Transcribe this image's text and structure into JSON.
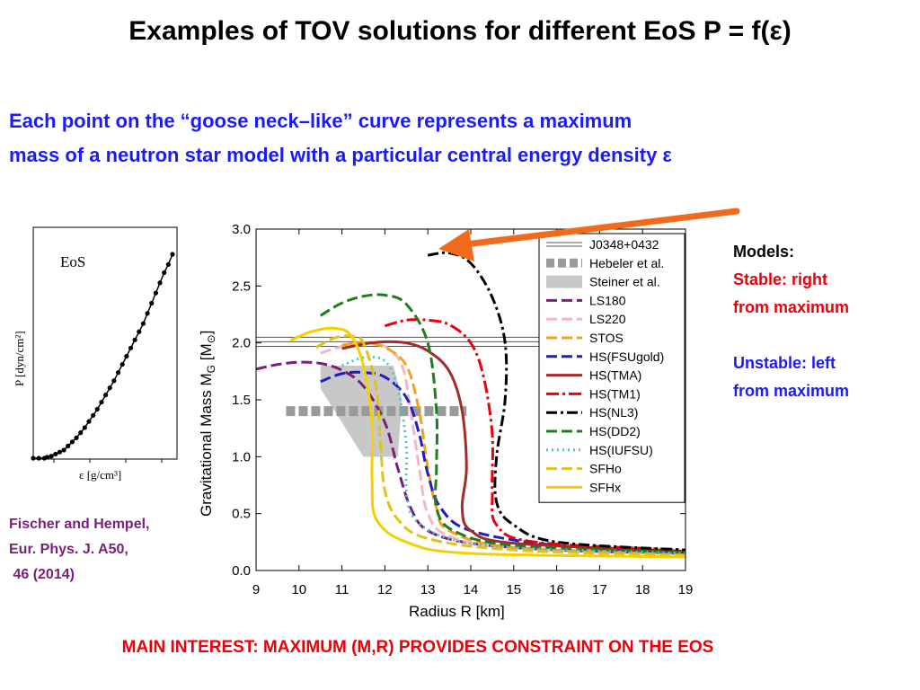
{
  "slide": {
    "title": "Examples of TOV solutions for different EoS  P = f(ε)",
    "subtitle_line1": "Each point on the “goose neck–like” curve represents  a maximum",
    "subtitle_line2": "mass of a neutron star model with a particular central energy density ε",
    "models_heading": "Models:",
    "stable_line1": "Stable: right",
    "stable_line2": "from maximum",
    "unstable_line1": "Unstable: left",
    "unstable_line2": "from maximum",
    "citation": "Fischer and Hempel,\nEur. Phys. J. A50,\n 46 (2014)",
    "bottom_note": "MAIN INTEREST: MAXIMUM (M,R) PROVIDES CONSTRAINT ON THE EOS",
    "colors": {
      "title": "#000000",
      "subtitle": "#1a1aff",
      "stable": "#e8000b",
      "unstable": "#1a1aff",
      "citation": "#7a1f7a",
      "arrow": "#f26a1b"
    }
  },
  "chart_data": [
    {
      "type": "line",
      "inset_label": "EoS",
      "xlabel": "ε [g/cm³]",
      "ylabel": "P [dyn/cm²]",
      "x": [
        0.0,
        0.04,
        0.08,
        0.1,
        0.13,
        0.16,
        0.19,
        0.22,
        0.25,
        0.28,
        0.31,
        0.34,
        0.37,
        0.4,
        0.43,
        0.46,
        0.49,
        0.52,
        0.55,
        0.58,
        0.61,
        0.64,
        0.67,
        0.7,
        0.73,
        0.76,
        0.79,
        0.82,
        0.85,
        0.88,
        0.91,
        0.94,
        0.97,
        1.0
      ],
      "y": [
        0.0,
        0.0,
        0.0,
        0.005,
        0.01,
        0.02,
        0.03,
        0.04,
        0.06,
        0.08,
        0.1,
        0.125,
        0.15,
        0.18,
        0.21,
        0.24,
        0.275,
        0.31,
        0.345,
        0.38,
        0.42,
        0.46,
        0.5,
        0.54,
        0.58,
        0.62,
        0.66,
        0.71,
        0.76,
        0.81,
        0.86,
        0.91,
        0.95,
        1.0
      ],
      "grid": false
    },
    {
      "type": "line",
      "xlabel": "Radius R [km]",
      "ylabel": "Gravitational Mass M",
      "ylabel_sub": "G",
      "ylabel_unit": " [M",
      "ylabel_sun": "⊙",
      "ylabel_end": "]",
      "xlim": [
        9,
        19
      ],
      "ylim": [
        0.0,
        3.0
      ],
      "xticks": [
        "9",
        "10",
        "11",
        "12",
        "13",
        "14",
        "15",
        "16",
        "17",
        "18",
        "19"
      ],
      "yticks": [
        "0.0",
        "0.5",
        "1.0",
        "1.5",
        "2.0",
        "2.5",
        "3.0"
      ],
      "legend_position": "right",
      "constraints": {
        "j0348": {
          "name": "J0348+0432",
          "mass_low": 1.97,
          "mass_high": 2.05
        },
        "hebeler": {
          "name": "Hebeler et al.",
          "r_min": 9.7,
          "r_max": 13.9,
          "mass": 1.4
        },
        "steiner": {
          "name": "Steiner et al.",
          "polygon": [
            [
              10.5,
              1.8
            ],
            [
              12.2,
              1.8
            ],
            [
              12.4,
              1.5
            ],
            [
              12.3,
              1.0
            ],
            [
              11.5,
              1.0
            ],
            [
              10.5,
              1.6
            ]
          ]
        }
      },
      "series": [
        {
          "name": "LS180",
          "color": "#7a1f7a",
          "dash": "12,5",
          "points": [
            [
              9,
              1.77
            ],
            [
              9.5,
              1.81
            ],
            [
              10.0,
              1.83
            ],
            [
              10.5,
              1.82
            ],
            [
              11.0,
              1.76
            ],
            [
              11.5,
              1.62
            ],
            [
              12.0,
              1.3
            ],
            [
              12.3,
              0.9
            ],
            [
              12.6,
              0.55
            ],
            [
              13.0,
              0.35
            ],
            [
              14.0,
              0.24
            ],
            [
              16.0,
              0.18
            ],
            [
              19.0,
              0.15
            ]
          ]
        },
        {
          "name": "LS220",
          "color": "#f4b6c2",
          "dash": "12,5",
          "points": [
            [
              10.5,
              1.91
            ],
            [
              11.0,
              1.97
            ],
            [
              11.5,
              2.0
            ],
            [
              12.0,
              1.97
            ],
            [
              12.4,
              1.8
            ],
            [
              12.6,
              1.4
            ],
            [
              12.8,
              0.9
            ],
            [
              13.0,
              0.5
            ],
            [
              13.5,
              0.3
            ],
            [
              15.0,
              0.2
            ],
            [
              19.0,
              0.15
            ]
          ]
        },
        {
          "name": "STOS",
          "color": "#f2a319",
          "dash": "12,5",
          "points": [
            [
              11.0,
              1.98
            ],
            [
              11.5,
              2.0
            ],
            [
              12.0,
              1.96
            ],
            [
              12.5,
              1.8
            ],
            [
              12.8,
              1.4
            ],
            [
              13.0,
              0.9
            ],
            [
              13.2,
              0.55
            ],
            [
              13.5,
              0.35
            ],
            [
              15.0,
              0.2
            ],
            [
              19.0,
              0.15
            ]
          ]
        },
        {
          "name": "HS(FSUgold)",
          "color": "#1f1fbf",
          "dash": "12,5",
          "points": [
            [
              10.5,
              1.66
            ],
            [
              11.0,
              1.73
            ],
            [
              11.5,
              1.74
            ],
            [
              12.0,
              1.7
            ],
            [
              12.5,
              1.52
            ],
            [
              12.8,
              1.2
            ],
            [
              13.0,
              0.85
            ],
            [
              13.3,
              0.55
            ],
            [
              14.0,
              0.35
            ],
            [
              16.0,
              0.22
            ],
            [
              19.0,
              0.16
            ]
          ]
        },
        {
          "name": "HS(TMA)",
          "color": "#a52a2a",
          "dash": "",
          "points": [
            [
              11.0,
              1.95
            ],
            [
              11.5,
              1.99
            ],
            [
              12.0,
              2.01
            ],
            [
              12.5,
              2.0
            ],
            [
              13.0,
              1.93
            ],
            [
              13.5,
              1.75
            ],
            [
              13.8,
              1.4
            ],
            [
              13.9,
              0.9
            ],
            [
              13.8,
              0.55
            ],
            [
              14.0,
              0.35
            ],
            [
              15.0,
              0.24
            ],
            [
              19.0,
              0.17
            ]
          ]
        },
        {
          "name": "HS(TM1)",
          "color": "#e8000b",
          "dash": "14,4,3,4",
          "points": [
            [
              12.0,
              2.15
            ],
            [
              12.5,
              2.2
            ],
            [
              13.0,
              2.2
            ],
            [
              13.5,
              2.16
            ],
            [
              14.0,
              2.0
            ],
            [
              14.3,
              1.7
            ],
            [
              14.5,
              1.2
            ],
            [
              14.5,
              0.7
            ],
            [
              14.6,
              0.4
            ],
            [
              15.5,
              0.25
            ],
            [
              19.0,
              0.18
            ]
          ]
        },
        {
          "name": "HS(NL3)",
          "color": "#000000",
          "dash": "12,4,3,4",
          "points": [
            [
              13.0,
              2.77
            ],
            [
              13.5,
              2.79
            ],
            [
              14.0,
              2.7
            ],
            [
              14.5,
              2.4
            ],
            [
              14.8,
              2.0
            ],
            [
              14.8,
              1.5
            ],
            [
              14.6,
              1.0
            ],
            [
              14.6,
              0.6
            ],
            [
              15.0,
              0.4
            ],
            [
              16.0,
              0.25
            ],
            [
              19.0,
              0.18
            ]
          ]
        },
        {
          "name": "HS(DD2)",
          "color": "#1e7d1e",
          "dash": "12,5",
          "points": [
            [
              10.5,
              2.24
            ],
            [
              11.0,
              2.35
            ],
            [
              11.5,
              2.41
            ],
            [
              12.0,
              2.42
            ],
            [
              12.5,
              2.34
            ],
            [
              13.0,
              2.0
            ],
            [
              13.2,
              1.4
            ],
            [
              13.2,
              0.9
            ],
            [
              13.2,
              0.55
            ],
            [
              13.6,
              0.35
            ],
            [
              15.0,
              0.22
            ],
            [
              19.0,
              0.16
            ]
          ]
        },
        {
          "name": "HS(IUFSU)",
          "color": "#4fc3d0",
          "dash": "2,4",
          "points": [
            [
              11.0,
              1.8
            ],
            [
              11.5,
              1.87
            ],
            [
              12.0,
              1.84
            ],
            [
              12.3,
              1.6
            ],
            [
              12.5,
              1.1
            ],
            [
              12.5,
              0.7
            ],
            [
              12.7,
              0.45
            ],
            [
              13.5,
              0.28
            ],
            [
              15.0,
              0.2
            ],
            [
              19.0,
              0.15
            ]
          ]
        },
        {
          "name": "SFHo",
          "color": "#e0c21a",
          "dash": "12,5",
          "points": [
            [
              10.4,
              1.96
            ],
            [
              10.8,
              2.04
            ],
            [
              11.2,
              2.06
            ],
            [
              11.5,
              2.0
            ],
            [
              11.8,
              1.6
            ],
            [
              11.9,
              1.1
            ],
            [
              12.0,
              0.7
            ],
            [
              12.3,
              0.45
            ],
            [
              13.0,
              0.28
            ],
            [
              15.0,
              0.18
            ],
            [
              19.0,
              0.13
            ]
          ]
        },
        {
          "name": "SFHx",
          "color": "#f5d000",
          "dash": "",
          "points": [
            [
              9.8,
              2.02
            ],
            [
              10.3,
              2.1
            ],
            [
              10.8,
              2.13
            ],
            [
              11.2,
              2.07
            ],
            [
              11.5,
              1.8
            ],
            [
              11.7,
              1.3
            ],
            [
              11.7,
              0.8
            ],
            [
              11.8,
              0.45
            ],
            [
              12.5,
              0.25
            ],
            [
              14.0,
              0.15
            ],
            [
              19.0,
              0.12
            ]
          ]
        }
      ]
    }
  ]
}
